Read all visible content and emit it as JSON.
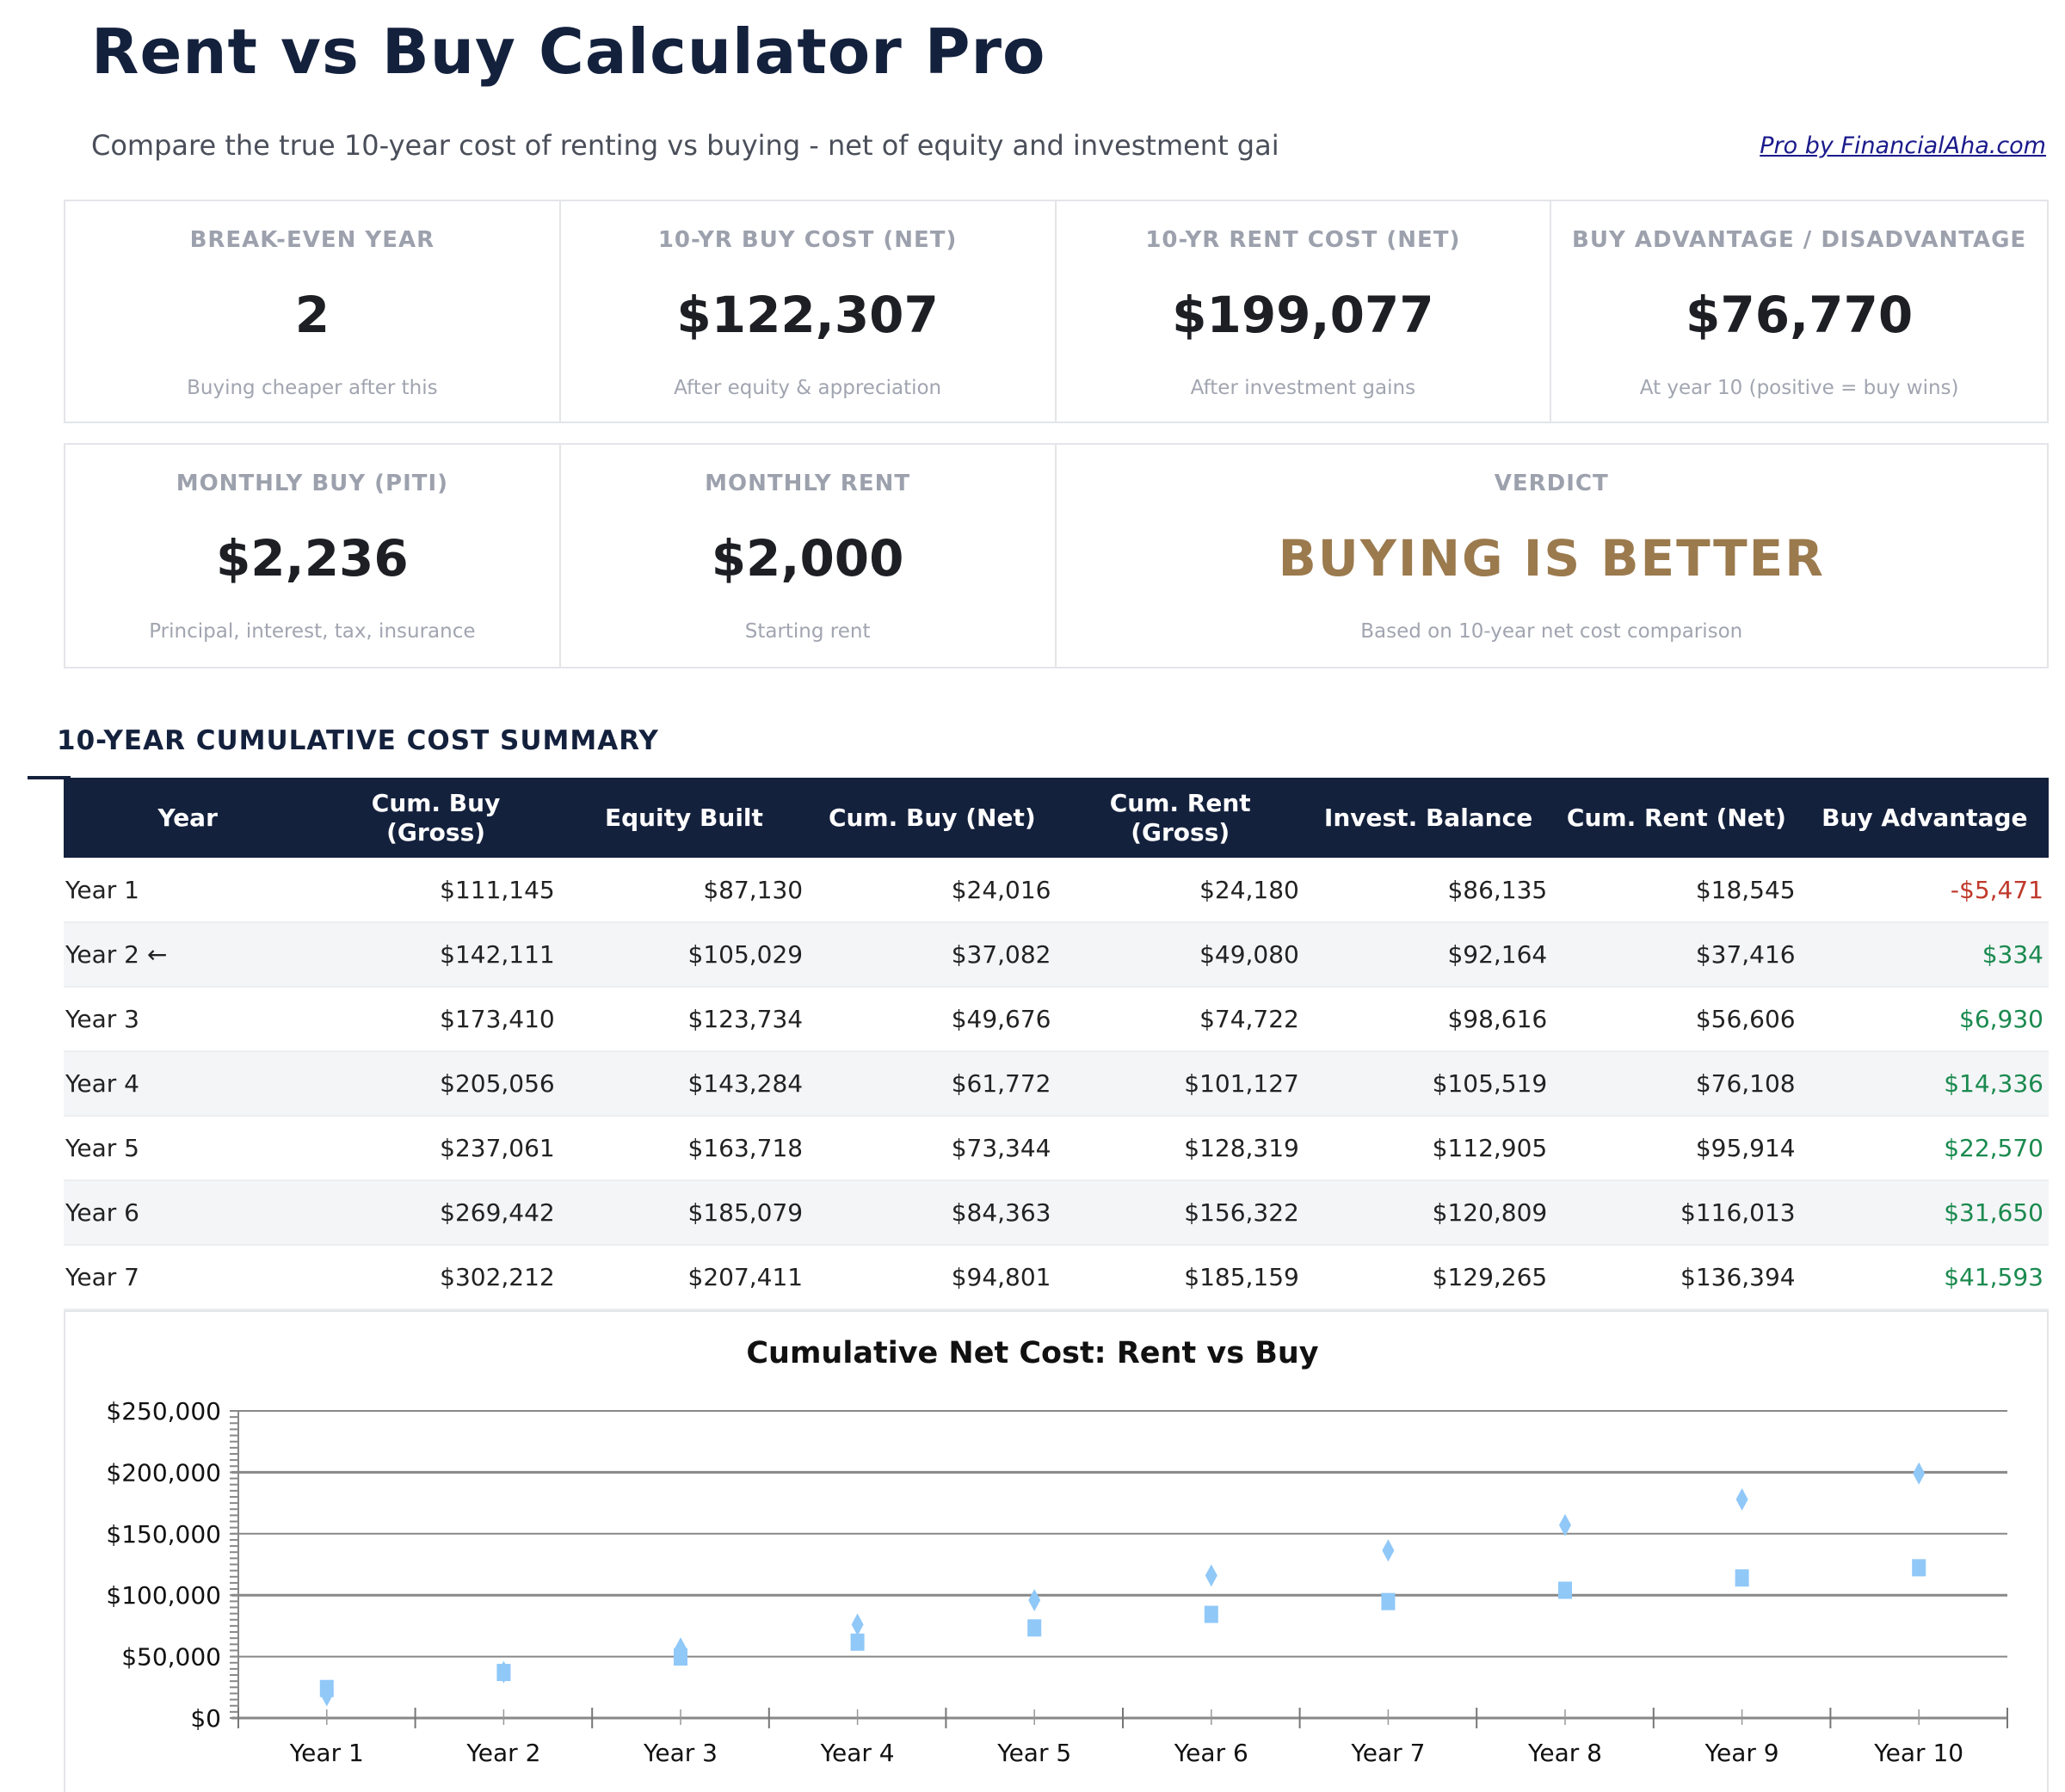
{
  "header": {
    "title": "Rent vs Buy Calculator Pro",
    "subtitle": "Compare the true 10-year cost of renting vs buying - net of equity and investment gai",
    "link": "Pro by FinancialAha.com"
  },
  "cards": [
    {
      "label": "BREAK-EVEN YEAR",
      "value": "2",
      "sub": "Buying cheaper after this"
    },
    {
      "label": "10-YR BUY COST (NET)",
      "value": "$122,307",
      "sub": "After equity & appreciation"
    },
    {
      "label": "10-YR RENT COST (NET)",
      "value": "$199,077",
      "sub": "After investment gains"
    },
    {
      "label": "BUY ADVANTAGE / DISADVANTAGE",
      "value": "$76,770",
      "sub": "At year 10 (positive = buy wins)"
    },
    {
      "label": "MONTHLY BUY (PITI)",
      "value": "$2,236",
      "sub": "Principal, interest, tax, insurance"
    },
    {
      "label": "MONTHLY RENT",
      "value": "$2,000",
      "sub": "Starting rent"
    },
    {
      "label": "VERDICT",
      "value": "BUYING IS BETTER",
      "sub": "Based on 10-year net cost comparison"
    }
  ],
  "colors": {
    "navy": "#14213d",
    "verdict": "#9b7a4e",
    "positive": "#1b8a4f",
    "negative": "#c0392b",
    "marker": "#90c8f8"
  },
  "table": {
    "title": "10-YEAR CUMULATIVE COST SUMMARY",
    "headers": [
      "Year",
      "Cum. Buy (Gross)",
      "Equity Built",
      "Cum. Buy (Net)",
      "Cum. Rent (Gross)",
      "Invest. Balance",
      "Cum. Rent (Net)",
      "Buy Advantage"
    ],
    "rows": [
      [
        "Year 1",
        "$111,145",
        "$87,130",
        "$24,016",
        "$24,180",
        "$86,135",
        "$18,545",
        "-$5,471"
      ],
      [
        "Year 2 ←",
        "$142,111",
        "$105,029",
        "$37,082",
        "$49,080",
        "$92,164",
        "$37,416",
        "$334"
      ],
      [
        "Year 3",
        "$173,410",
        "$123,734",
        "$49,676",
        "$74,722",
        "$98,616",
        "$56,606",
        "$6,930"
      ],
      [
        "Year 4",
        "$205,056",
        "$143,284",
        "$61,772",
        "$101,127",
        "$105,519",
        "$76,108",
        "$14,336"
      ],
      [
        "Year 5",
        "$237,061",
        "$163,718",
        "$73,344",
        "$128,319",
        "$112,905",
        "$95,914",
        "$22,570"
      ],
      [
        "Year 6",
        "$269,442",
        "$185,079",
        "$84,363",
        "$156,322",
        "$120,809",
        "$116,013",
        "$31,650"
      ],
      [
        "Year 7",
        "$302,212",
        "$207,411",
        "$94,801",
        "$185,159",
        "$129,265",
        "$136,394",
        "$41,593"
      ]
    ]
  },
  "chart_data": {
    "type": "scatter",
    "title": "Cumulative Net Cost: Rent vs Buy",
    "categories": [
      "Year 1",
      "Year 2",
      "Year 3",
      "Year 4",
      "Year 5",
      "Year 6",
      "Year 7",
      "Year 8",
      "Year 9",
      "Year 10"
    ],
    "series": [
      {
        "marker": "square",
        "values": [
          24016,
          37082,
          49676,
          61772,
          73344,
          84363,
          94801,
          104000,
          114000,
          122307
        ]
      },
      {
        "marker": "diamond",
        "values": [
          18545,
          37416,
          56606,
          76108,
          95914,
          116013,
          136394,
          157000,
          178000,
          199077
        ]
      }
    ],
    "ylim": [
      0,
      250000
    ],
    "yticks": [
      "$0",
      "$50,000",
      "$100,000",
      "$150,000",
      "$200,000",
      "$250,000"
    ],
    "grid": true
  }
}
